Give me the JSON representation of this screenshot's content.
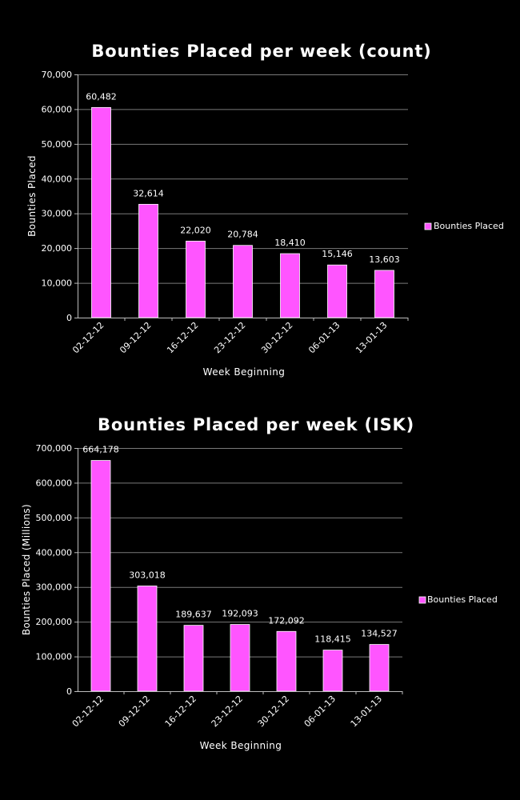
{
  "chart_data": [
    {
      "type": "bar",
      "title": "Bounties Placed per week (count)",
      "xlabel": "Week Beginning",
      "ylabel": "Bounties Placed",
      "categories": [
        "02-12-12",
        "09-12-12",
        "16-12-12",
        "23-12-12",
        "30-12-12",
        "06-01-13",
        "13-01-13"
      ],
      "series": [
        {
          "name": "Bounties Placed",
          "values": [
            60482,
            32614,
            22020,
            20784,
            18410,
            15146,
            13603
          ],
          "labels": [
            "60,482",
            "32,614",
            "22,020",
            "20,784",
            "18,410",
            "15,146",
            "13,603"
          ]
        }
      ],
      "ylim": [
        0,
        70000
      ],
      "yticks": [
        0,
        10000,
        20000,
        30000,
        40000,
        50000,
        60000,
        70000
      ],
      "ytick_labels": [
        "0",
        "10,000",
        "20,000",
        "30,000",
        "40,000",
        "50,000",
        "60,000",
        "70,000"
      ],
      "grid": true,
      "legend": "right",
      "bar_color": "#ff55ff"
    },
    {
      "type": "bar",
      "title": "Bounties Placed per week (ISK)",
      "xlabel": "Week Beginning",
      "ylabel": "Bounties Placed (Millions)",
      "categories": [
        "02-12-12",
        "09-12-12",
        "16-12-12",
        "23-12-12",
        "30-12-12",
        "06-01-13",
        "13-01-13"
      ],
      "series": [
        {
          "name": "Bounties Placed",
          "values": [
            664178,
            303018,
            189637,
            192093,
            172092,
            118415,
            134527
          ],
          "labels": [
            "664,178",
            "303,018",
            "189,637",
            "192,093",
            "172,092",
            "118,415",
            "134,527"
          ]
        }
      ],
      "ylim": [
        0,
        700000
      ],
      "yticks": [
        0,
        100000,
        200000,
        300000,
        400000,
        500000,
        600000,
        700000
      ],
      "ytick_labels": [
        "0",
        "100,000",
        "200,000",
        "300,000",
        "400,000",
        "500,000",
        "600,000",
        "700,000"
      ],
      "grid": true,
      "legend": "right",
      "bar_color": "#ff55ff"
    }
  ]
}
